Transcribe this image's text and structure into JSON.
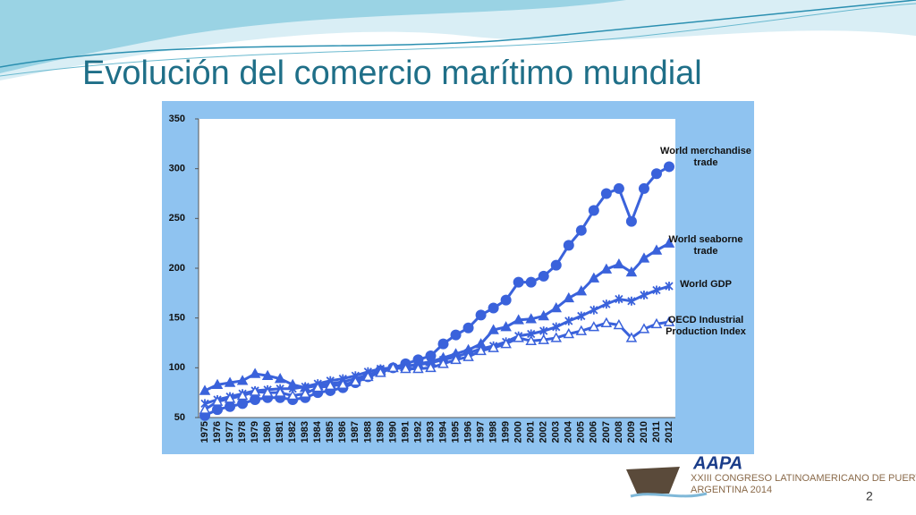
{
  "chart_data": {
    "type": "line",
    "title": "Evolución del comercio marítimo mundial",
    "categories": [
      "1975",
      "1976",
      "1977",
      "1978",
      "1979",
      "1980",
      "1981",
      "1982",
      "1983",
      "1984",
      "1985",
      "1986",
      "1987",
      "1988",
      "1989",
      "1990",
      "1991",
      "1992",
      "1993",
      "1994",
      "1995",
      "1996",
      "1997",
      "1998",
      "1999",
      "2000",
      "2001",
      "2002",
      "2003",
      "2004",
      "2005",
      "2006",
      "2007",
      "2008",
      "2009",
      "2010",
      "2011",
      "2012"
    ],
    "series": [
      {
        "name": "World merchandise trade",
        "color": "#3a62db",
        "marker": "circle",
        "values": [
          52,
          58,
          61,
          64,
          68,
          70,
          70,
          68,
          70,
          75,
          77,
          80,
          85,
          91,
          97,
          100,
          104,
          108,
          112,
          124,
          133,
          140,
          153,
          160,
          168,
          186,
          186,
          192,
          203,
          223,
          238,
          258,
          275,
          280,
          247,
          280,
          295,
          302
        ]
      },
      {
        "name": "World seaborne trade",
        "color": "#3a62db",
        "marker": "triangle",
        "values": [
          77,
          83,
          85,
          87,
          94,
          92,
          89,
          83,
          80,
          82,
          84,
          86,
          89,
          93,
          97,
          100,
          101,
          104,
          106,
          110,
          114,
          118,
          124,
          138,
          141,
          148,
          149,
          152,
          160,
          170,
          177,
          190,
          199,
          204,
          196,
          210,
          218,
          225
        ]
      },
      {
        "name": "World GDP",
        "color": "#3a62db",
        "marker": "star",
        "values": [
          64,
          68,
          71,
          74,
          77,
          78,
          79,
          79,
          81,
          84,
          87,
          89,
          92,
          96,
          99,
          100,
          101,
          103,
          105,
          108,
          111,
          115,
          119,
          122,
          126,
          132,
          134,
          137,
          141,
          147,
          152,
          158,
          164,
          169,
          167,
          173,
          178,
          182
        ]
      },
      {
        "name": "OECD Industrial Production Index",
        "color": "#3a62db",
        "marker": "triangle-open",
        "values": [
          58,
          66,
          69,
          72,
          76,
          75,
          75,
          72,
          74,
          80,
          82,
          83,
          86,
          91,
          95,
          100,
          99,
          99,
          100,
          104,
          108,
          111,
          117,
          120,
          124,
          130,
          127,
          128,
          130,
          134,
          137,
          141,
          145,
          143,
          130,
          139,
          144,
          146
        ]
      }
    ],
    "ylim": [
      50,
      350
    ],
    "yticks": [
      50,
      100,
      150,
      200,
      250,
      300,
      350
    ],
    "grid": false
  },
  "slide": {
    "logo": "AAPA",
    "event": "XXIII CONGRESO LATINOAMERICANO DE PUERTOS",
    "edition": "ARGENTINA 2014",
    "page": 2
  }
}
